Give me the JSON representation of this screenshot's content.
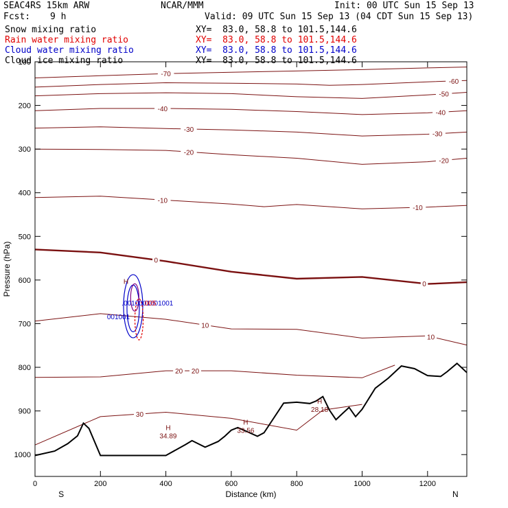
{
  "header": {
    "model": "SEAC4RS 15km ARW",
    "org": "NCAR/MMM",
    "init": "Init: 00 UTC Sun 15 Sep 13",
    "fcst_label": "Fcst:",
    "fcst_value": "9 h",
    "valid": "Valid: 09 UTC Sun 15 Sep 13 (04 CDT Sun 15 Sep 13)"
  },
  "fields": [
    {
      "name": "Snow mixing ratio",
      "xy": "XY=  83.0, 58.8 to 101.5,144.6",
      "color": "#000000"
    },
    {
      "name": "Rain water mixing ratio",
      "xy": "XY=  83.0, 58.8 to 101.5,144.6",
      "color": "#e00000"
    },
    {
      "name": "Cloud water mixing ratio",
      "xy": "XY=  83.0, 58.8 to 101.5,144.6",
      "color": "#0000c8"
    },
    {
      "name": "Cloud ice mixing ratio",
      "xy": "XY=  83.0, 58.8 to 101.5,144.6",
      "color": "#000000"
    }
  ],
  "chart_data": {
    "type": "cross-section",
    "xlabel": "Distance (km)",
    "ylabel": "Pressure (hPa)",
    "xlim": [
      0,
      1320
    ],
    "ylim": [
      1050,
      100
    ],
    "x_ticks": [
      0,
      200,
      400,
      600,
      800,
      1000,
      1200
    ],
    "y_ticks": [
      100,
      200,
      300,
      400,
      500,
      600,
      700,
      800,
      900,
      1000
    ],
    "endpoint_left": "S",
    "endpoint_right": "N",
    "temperature_contours": [
      {
        "label": "-70",
        "points": [
          [
            0,
            137
          ],
          [
            200,
            132
          ],
          [
            400,
            127
          ],
          [
            600,
            124
          ],
          [
            800,
            121
          ],
          [
            1000,
            118
          ],
          [
            1200,
            114
          ],
          [
            1320,
            112
          ]
        ]
      },
      {
        "label": "-60",
        "points": [
          [
            0,
            158
          ],
          [
            200,
            152
          ],
          [
            400,
            148
          ],
          [
            600,
            149
          ],
          [
            800,
            151
          ],
          [
            900,
            154
          ],
          [
            1000,
            152
          ],
          [
            1200,
            146
          ],
          [
            1320,
            143
          ]
        ]
      },
      {
        "label": "-50",
        "points": [
          [
            0,
            178
          ],
          [
            200,
            173
          ],
          [
            400,
            171
          ],
          [
            600,
            173
          ],
          [
            800,
            180
          ],
          [
            1000,
            184
          ],
          [
            1200,
            176
          ],
          [
            1320,
            170
          ]
        ]
      },
      {
        "label": "-40",
        "points": [
          [
            0,
            212
          ],
          [
            200,
            207
          ],
          [
            400,
            207
          ],
          [
            600,
            209
          ],
          [
            800,
            214
          ],
          [
            1000,
            221
          ],
          [
            1200,
            217
          ],
          [
            1320,
            212
          ]
        ]
      },
      {
        "label": "-30",
        "points": [
          [
            0,
            252
          ],
          [
            200,
            249
          ],
          [
            400,
            253
          ],
          [
            600,
            256
          ],
          [
            800,
            261
          ],
          [
            1000,
            270
          ],
          [
            1200,
            266
          ],
          [
            1320,
            261
          ]
        ]
      },
      {
        "label": "-20",
        "points": [
          [
            0,
            300
          ],
          [
            200,
            301
          ],
          [
            400,
            303
          ],
          [
            600,
            313
          ],
          [
            800,
            321
          ],
          [
            1000,
            335
          ],
          [
            1200,
            329
          ],
          [
            1320,
            321
          ]
        ]
      },
      {
        "label": "-10",
        "points": [
          [
            0,
            411
          ],
          [
            200,
            408
          ],
          [
            400,
            417
          ],
          [
            600,
            426
          ],
          [
            700,
            432
          ],
          [
            800,
            427
          ],
          [
            1000,
            437
          ],
          [
            1200,
            433
          ],
          [
            1320,
            429
          ]
        ]
      },
      {
        "label": "0",
        "points": [
          [
            0,
            530
          ],
          [
            200,
            537
          ],
          [
            400,
            557
          ],
          [
            600,
            581
          ],
          [
            800,
            597
          ],
          [
            1000,
            593
          ],
          [
            1200,
            609
          ],
          [
            1320,
            605
          ]
        ]
      },
      {
        "label": "10",
        "points": [
          [
            0,
            694
          ],
          [
            200,
            677
          ],
          [
            400,
            690
          ],
          [
            600,
            712
          ],
          [
            800,
            713
          ],
          [
            1000,
            733
          ],
          [
            1200,
            728
          ],
          [
            1320,
            749
          ]
        ]
      },
      {
        "label": "20",
        "points": [
          [
            0,
            823
          ],
          [
            200,
            822
          ],
          [
            400,
            808
          ],
          [
            600,
            808
          ],
          [
            800,
            818
          ],
          [
            1000,
            824
          ],
          [
            1100,
            795
          ]
        ]
      },
      {
        "label": "30",
        "points": [
          [
            0,
            978
          ],
          [
            200,
            913
          ],
          [
            400,
            903
          ],
          [
            600,
            917
          ],
          [
            800,
            944
          ],
          [
            880,
            898
          ],
          [
            1000,
            885
          ]
        ]
      }
    ],
    "terrain_pressure_hPa": [
      [
        0,
        1002
      ],
      [
        60,
        992
      ],
      [
        100,
        975
      ],
      [
        130,
        957
      ],
      [
        148,
        928
      ],
      [
        165,
        940
      ],
      [
        200,
        1002
      ],
      [
        400,
        1002
      ],
      [
        460,
        977
      ],
      [
        480,
        968
      ],
      [
        520,
        983
      ],
      [
        560,
        970
      ],
      [
        580,
        958
      ],
      [
        600,
        944
      ],
      [
        620,
        938
      ],
      [
        650,
        948
      ],
      [
        680,
        958
      ],
      [
        700,
        950
      ],
      [
        760,
        882
      ],
      [
        800,
        880
      ],
      [
        840,
        883
      ],
      [
        860,
        877
      ],
      [
        880,
        867
      ],
      [
        900,
        898
      ],
      [
        920,
        920
      ],
      [
        940,
        906
      ],
      [
        960,
        892
      ],
      [
        980,
        913
      ],
      [
        1000,
        896
      ],
      [
        1040,
        848
      ],
      [
        1080,
        825
      ],
      [
        1120,
        797
      ],
      [
        1160,
        803
      ],
      [
        1200,
        819
      ],
      [
        1240,
        821
      ],
      [
        1260,
        810
      ],
      [
        1290,
        791
      ],
      [
        1320,
        812
      ]
    ],
    "annotations": [
      {
        "type": "high",
        "text": "H",
        "value": "34.89",
        "x": 407,
        "p": 963
      },
      {
        "type": "high",
        "text": "H",
        "value": "33.56",
        "x": 644,
        "p": 950
      },
      {
        "type": "high",
        "text": "H",
        "value": "28.18",
        "x": 870,
        "p": 902
      },
      {
        "type": "high",
        "text": "H",
        "value": "",
        "x": 278,
        "p": 628
      },
      {
        "type": "label",
        "text": "-70",
        "x": 400
      },
      {
        "type": "label",
        "text": "-60",
        "x": 1280
      },
      {
        "type": "label",
        "text": "-50",
        "x": 1250
      },
      {
        "type": "label",
        "text": "-40",
        "x": 390
      },
      {
        "type": "label",
        "text": "-40",
        "x": 1240
      },
      {
        "type": "label",
        "text": "-30",
        "x": 470
      },
      {
        "type": "label",
        "text": "-30",
        "x": 1230
      },
      {
        "type": "label",
        "text": "-20",
        "x": 470
      },
      {
        "type": "label",
        "text": "-20",
        "x": 1250
      },
      {
        "type": "label",
        "text": "-10",
        "x": 390
      },
      {
        "type": "label",
        "text": "-10",
        "x": 1170
      },
      {
        "type": "label",
        "text": "0",
        "x": 370
      },
      {
        "type": "label",
        "text": "0",
        "x": 1190
      },
      {
        "type": "label",
        "text": "10",
        "x": 520
      },
      {
        "type": "label",
        "text": "10",
        "x": 1210
      },
      {
        "type": "label",
        "text": "20",
        "x": 440
      },
      {
        "type": "label",
        "text": "20",
        "x": 490
      },
      {
        "type": "label",
        "text": "30",
        "x": 320
      }
    ],
    "cloud_labels": [
      {
        "text": ".0010001001001",
        "x": 265,
        "p": 658,
        "color": "#0000c8"
      },
      {
        "text": "001001",
        "x": 220,
        "p": 690,
        "color": "#0000c8"
      },
      {
        "text": "005",
        "x": 335,
        "p": 658,
        "color": "#e00000"
      }
    ],
    "colors": {
      "temperature": "#7a1010",
      "freezing": "#7a1010",
      "terrain": "#000000",
      "cloud_water": "#0000c8",
      "rain_water": "#e00000",
      "ice": "#800080"
    }
  }
}
